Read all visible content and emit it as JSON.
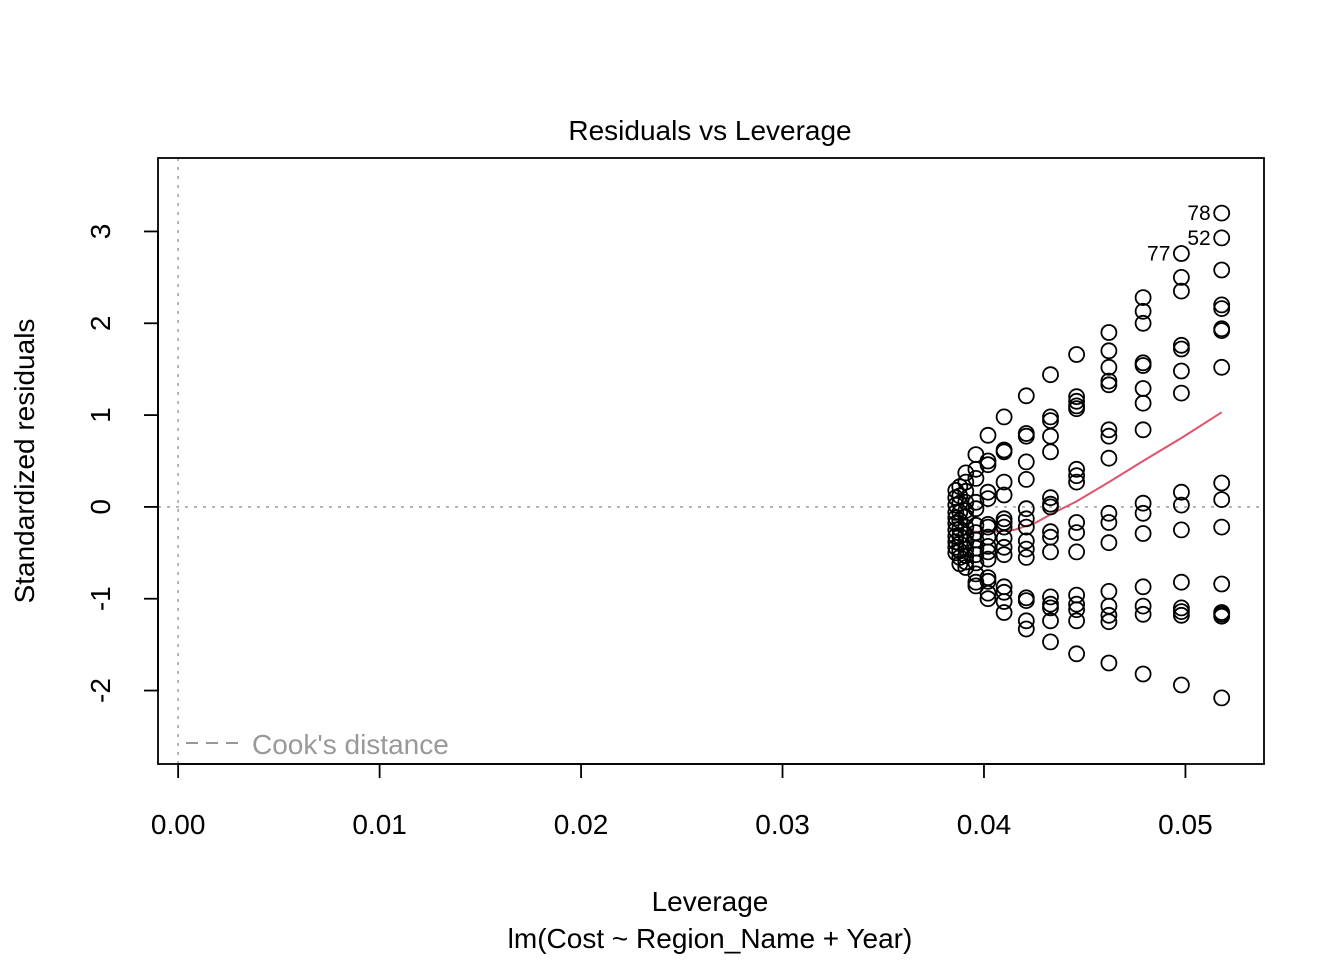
{
  "chart_data": {
    "type": "scatter",
    "title": "Residuals vs Leverage",
    "xlabel": "Leverage",
    "subtitle": "lm(Cost ~ Region_Name + Year)",
    "ylabel": "Standardized residuals",
    "xlim": [
      -0.001,
      0.0539
    ],
    "ylim": [
      -2.8,
      3.8
    ],
    "x_ticks": [
      0.0,
      0.01,
      0.02,
      0.03,
      0.04,
      0.05
    ],
    "x_tick_labels": [
      "0.00",
      "0.01",
      "0.02",
      "0.03",
      "0.04",
      "0.05"
    ],
    "y_ticks": [
      -2,
      -1,
      0,
      1,
      2,
      3
    ],
    "y_tick_labels": [
      "-2",
      "-1",
      "0",
      "1",
      "2",
      "3"
    ],
    "reference_lines": {
      "h": 0,
      "v": 0,
      "style": "dotted",
      "color": "#a6a6a6"
    },
    "legend": {
      "position": "bottom-left",
      "label": "Cook's distance",
      "line": "dashed",
      "color": "#999999"
    },
    "point_color": "#000000",
    "smooth_color": "#df536b",
    "points": [
      [
        0.0518,
        3.2
      ],
      [
        0.0518,
        2.93
      ],
      [
        0.0518,
        2.58
      ],
      [
        0.0518,
        2.2
      ],
      [
        0.0518,
        2.16
      ],
      [
        0.0518,
        1.94
      ],
      [
        0.0518,
        1.92
      ],
      [
        0.0518,
        1.52
      ],
      [
        0.0518,
        0.26
      ],
      [
        0.0518,
        0.08
      ],
      [
        0.0518,
        -0.22
      ],
      [
        0.0518,
        -0.84
      ],
      [
        0.0518,
        -1.15
      ],
      [
        0.0518,
        -1.17
      ],
      [
        0.0518,
        -1.19
      ],
      [
        0.0518,
        -2.08
      ],
      [
        0.0498,
        2.76
      ],
      [
        0.0498,
        2.5
      ],
      [
        0.0498,
        2.35
      ],
      [
        0.0498,
        1.76
      ],
      [
        0.0498,
        1.72
      ],
      [
        0.0498,
        1.48
      ],
      [
        0.0498,
        1.24
      ],
      [
        0.0498,
        0.16
      ],
      [
        0.0498,
        0.02
      ],
      [
        0.0498,
        -0.25
      ],
      [
        0.0498,
        -0.82
      ],
      [
        0.0498,
        -1.1
      ],
      [
        0.0498,
        -1.14
      ],
      [
        0.0498,
        -1.18
      ],
      [
        0.0498,
        -1.94
      ],
      [
        0.0479,
        2.28
      ],
      [
        0.0479,
        2.13
      ],
      [
        0.0479,
        2.0
      ],
      [
        0.0479,
        1.57
      ],
      [
        0.0479,
        1.54
      ],
      [
        0.0479,
        1.29
      ],
      [
        0.0479,
        1.13
      ],
      [
        0.0479,
        0.84
      ],
      [
        0.0479,
        0.04
      ],
      [
        0.0479,
        -0.07
      ],
      [
        0.0479,
        -0.29
      ],
      [
        0.0479,
        -0.87
      ],
      [
        0.0479,
        -1.08
      ],
      [
        0.0479,
        -1.17
      ],
      [
        0.0479,
        -1.82
      ],
      [
        0.0462,
        1.9
      ],
      [
        0.0462,
        1.7
      ],
      [
        0.0462,
        1.52
      ],
      [
        0.0462,
        1.37
      ],
      [
        0.0462,
        1.33
      ],
      [
        0.0462,
        0.84
      ],
      [
        0.0462,
        0.77
      ],
      [
        0.0462,
        0.53
      ],
      [
        0.0462,
        -0.07
      ],
      [
        0.0462,
        -0.17
      ],
      [
        0.0462,
        -0.39
      ],
      [
        0.0462,
        -0.92
      ],
      [
        0.0462,
        -1.08
      ],
      [
        0.0462,
        -1.18
      ],
      [
        0.0462,
        -1.25
      ],
      [
        0.0462,
        -1.7
      ],
      [
        0.0446,
        1.66
      ],
      [
        0.0446,
        1.2
      ],
      [
        0.0446,
        1.15
      ],
      [
        0.0446,
        1.1
      ],
      [
        0.0446,
        1.07
      ],
      [
        0.0446,
        0.41
      ],
      [
        0.0446,
        0.34
      ],
      [
        0.0446,
        0.27
      ],
      [
        0.0446,
        -0.17
      ],
      [
        0.0446,
        -0.28
      ],
      [
        0.0446,
        -0.49
      ],
      [
        0.0446,
        -0.96
      ],
      [
        0.0446,
        -1.06
      ],
      [
        0.0446,
        -1.12
      ],
      [
        0.0446,
        -1.24
      ],
      [
        0.0446,
        -1.6
      ],
      [
        0.0433,
        1.44
      ],
      [
        0.0433,
        0.98
      ],
      [
        0.0433,
        0.94
      ],
      [
        0.0433,
        0.77
      ],
      [
        0.0433,
        0.6
      ],
      [
        0.0433,
        0.1
      ],
      [
        0.0433,
        0.03
      ],
      [
        0.0433,
        0.0
      ],
      [
        0.0433,
        -0.27
      ],
      [
        0.0433,
        -0.33
      ],
      [
        0.0433,
        -0.49
      ],
      [
        0.0433,
        -0.98
      ],
      [
        0.0433,
        -1.06
      ],
      [
        0.0433,
        -1.1
      ],
      [
        0.0433,
        -1.24
      ],
      [
        0.0433,
        -1.47
      ],
      [
        0.0421,
        1.21
      ],
      [
        0.0421,
        0.8
      ],
      [
        0.0421,
        0.77
      ],
      [
        0.0421,
        0.49
      ],
      [
        0.0421,
        0.3
      ],
      [
        0.0421,
        -0.02
      ],
      [
        0.0421,
        -0.13
      ],
      [
        0.0421,
        -0.22
      ],
      [
        0.0421,
        -0.37
      ],
      [
        0.0421,
        -0.46
      ],
      [
        0.0421,
        -0.55
      ],
      [
        0.0421,
        -0.99
      ],
      [
        0.0421,
        -1.02
      ],
      [
        0.0421,
        -1.24
      ],
      [
        0.0421,
        -1.33
      ],
      [
        0.041,
        0.98
      ],
      [
        0.041,
        0.62
      ],
      [
        0.041,
        0.6
      ],
      [
        0.041,
        0.27
      ],
      [
        0.041,
        0.13
      ],
      [
        0.041,
        -0.13
      ],
      [
        0.041,
        -0.17
      ],
      [
        0.041,
        -0.22
      ],
      [
        0.041,
        -0.34
      ],
      [
        0.041,
        -0.44
      ],
      [
        0.041,
        -0.52
      ],
      [
        0.041,
        -0.87
      ],
      [
        0.041,
        -0.93
      ],
      [
        0.041,
        -1.03
      ],
      [
        0.041,
        -1.15
      ],
      [
        0.0402,
        0.78
      ],
      [
        0.0402,
        0.5
      ],
      [
        0.0402,
        0.46
      ],
      [
        0.0402,
        0.16
      ],
      [
        0.0402,
        0.09
      ],
      [
        0.0402,
        -0.19
      ],
      [
        0.0402,
        -0.22
      ],
      [
        0.0402,
        -0.33
      ],
      [
        0.0402,
        -0.43
      ],
      [
        0.0402,
        -0.49
      ],
      [
        0.0402,
        -0.57
      ],
      [
        0.0402,
        -0.77
      ],
      [
        0.0402,
        -0.81
      ],
      [
        0.0402,
        -0.94
      ],
      [
        0.0402,
        -1.0
      ],
      [
        0.0396,
        0.57
      ],
      [
        0.0396,
        0.41
      ],
      [
        0.0396,
        0.31
      ],
      [
        0.0396,
        0.05
      ],
      [
        0.0396,
        -0.02
      ],
      [
        0.0396,
        -0.2
      ],
      [
        0.0396,
        -0.28
      ],
      [
        0.0396,
        -0.36
      ],
      [
        0.0396,
        -0.45
      ],
      [
        0.0396,
        -0.52
      ],
      [
        0.0396,
        -0.61
      ],
      [
        0.0396,
        -0.73
      ],
      [
        0.0396,
        -0.82
      ],
      [
        0.0396,
        -0.86
      ],
      [
        0.0391,
        0.37
      ],
      [
        0.0391,
        0.27
      ],
      [
        0.0391,
        0.17
      ],
      [
        0.0391,
        0.05
      ],
      [
        0.0391,
        -0.04
      ],
      [
        0.0391,
        -0.11
      ],
      [
        0.0391,
        -0.22
      ],
      [
        0.0391,
        -0.3
      ],
      [
        0.0391,
        -0.38
      ],
      [
        0.0391,
        -0.46
      ],
      [
        0.0391,
        -0.53
      ],
      [
        0.0391,
        -0.6
      ],
      [
        0.0391,
        -0.66
      ],
      [
        0.0388,
        0.22
      ],
      [
        0.0388,
        0.12
      ],
      [
        0.0388,
        0.04
      ],
      [
        0.0388,
        -0.06
      ],
      [
        0.0388,
        -0.15
      ],
      [
        0.0388,
        -0.24
      ],
      [
        0.0388,
        -0.32
      ],
      [
        0.0388,
        -0.4
      ],
      [
        0.0388,
        -0.48
      ],
      [
        0.0388,
        -0.55
      ],
      [
        0.0388,
        -0.62
      ],
      [
        0.0386,
        0.18
      ],
      [
        0.0386,
        0.1
      ],
      [
        0.0386,
        0.02
      ],
      [
        0.0386,
        -0.06
      ],
      [
        0.0386,
        -0.12
      ],
      [
        0.0386,
        -0.18
      ],
      [
        0.0386,
        -0.25
      ],
      [
        0.0386,
        -0.32
      ],
      [
        0.0386,
        -0.38
      ],
      [
        0.0386,
        -0.44
      ],
      [
        0.0386,
        -0.5
      ]
    ],
    "labeled_points": [
      {
        "label": "78",
        "x": 0.0518,
        "y": 3.2
      },
      {
        "label": "52",
        "x": 0.0518,
        "y": 2.93
      },
      {
        "label": "77",
        "x": 0.0498,
        "y": 2.76
      }
    ],
    "smooth_line": [
      [
        0.0386,
        -0.25
      ],
      [
        0.0396,
        -0.27
      ],
      [
        0.0405,
        -0.27
      ],
      [
        0.0415,
        -0.25
      ],
      [
        0.0425,
        -0.18
      ],
      [
        0.0435,
        -0.06
      ],
      [
        0.0446,
        0.06
      ],
      [
        0.0462,
        0.27
      ],
      [
        0.0479,
        0.5
      ],
      [
        0.0498,
        0.75
      ],
      [
        0.0518,
        1.03
      ]
    ]
  }
}
